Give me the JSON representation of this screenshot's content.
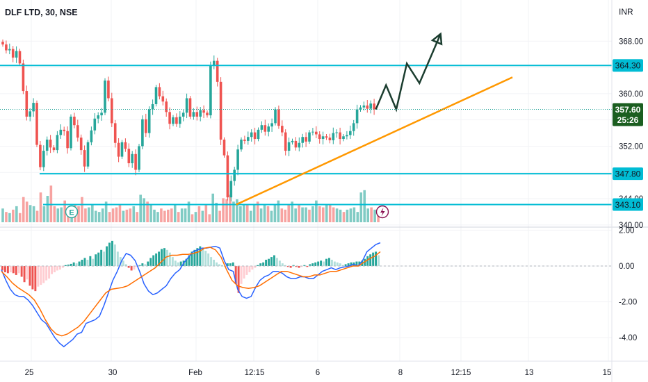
{
  "header": {
    "symbol_title": "DLF LTD, 30, NSE",
    "currency": "INR"
  },
  "colors": {
    "up": "#26a69a",
    "down": "#ef5350",
    "vol_up": "#80cbc4",
    "vol_down": "#f7a3a1",
    "level_line": "#00bcd4",
    "trend_line": "#ff9800",
    "projection": "#1b3d2f",
    "macd": "#2962ff",
    "signal": "#ff6d00",
    "price_tag": "#1b5e20"
  },
  "chart_data": [
    {
      "type": "candlestick",
      "title": "DLF LTD, 30, NSE",
      "ylabel": "INR",
      "ylim": [
        338.5,
        373
      ],
      "yticks": [
        340.0,
        344.0,
        348.0,
        352.0,
        356.0,
        360.0,
        364.0,
        368.0
      ],
      "ytick_labels": [
        "340.00",
        "344.00",
        "348.00",
        "352.00",
        "356.00",
        "360.00",
        "364.00",
        "368.00"
      ],
      "xlabels": [
        "25",
        "30",
        "Feb",
        "12:15",
        "6",
        "8",
        "12:15",
        "13",
        "15"
      ],
      "close_path": [
        367.5,
        366.6,
        366.8,
        365.5,
        366.5,
        364.6,
        360.4,
        356.5,
        357.3,
        358.6,
        352.2,
        348.8,
        351.3,
        353.0,
        351.8,
        351.4,
        353.7,
        354.5,
        354.3,
        351.7,
        356.5,
        355.2,
        353.3,
        351.4,
        348.9,
        352.6,
        354.4,
        356.2,
        356.7,
        357.1,
        362.0,
        359.3,
        355.5,
        352.5,
        350.4,
        352.6,
        351.6,
        349.4,
        350.8,
        348.4,
        352.0,
        356.1,
        354.0,
        357.6,
        358.4,
        361.0,
        359.6,
        358.8,
        357.2,
        355.4,
        356.4,
        355.4,
        356.5,
        357.1,
        359.3,
        356.5,
        357.2,
        356.5,
        357.5,
        357.1,
        356.7,
        364.3,
        365.0,
        361.8,
        353.0,
        350.6,
        344.2,
        346.7,
        348.4,
        351.5,
        353.0,
        352.8,
        353.4,
        354.1,
        353.1,
        354.5,
        355.2,
        354.2,
        355.0,
        355.5,
        357.6,
        355.1,
        354.1,
        351.3,
        352.6,
        352.8,
        351.8,
        352.5,
        353.4,
        352.7,
        354.1,
        354.2,
        353.8,
        353.1,
        353.5,
        353.3,
        352.9,
        354.0,
        354.1,
        353.1,
        353.5,
        353.7,
        354.3,
        355.5,
        357.6,
        357.9,
        358.2,
        357.7,
        358.5,
        357.6
      ],
      "levels": [
        {
          "label": "364.30",
          "value": 364.3
        },
        {
          "label": "347.80",
          "value": 347.8
        },
        {
          "label": "343.10",
          "value": 343.1
        }
      ],
      "last_price": {
        "label": "357.60",
        "value": 357.6,
        "countdown": "25:26"
      },
      "trendline": {
        "from": {
          "bar": 68.5,
          "price": 343.1
        },
        "to": {
          "bar": 149.6,
          "price": 362.5
        }
      },
      "projection_path": [
        {
          "bar": 109.5,
          "price": 357.6
        },
        {
          "bar": 112.5,
          "price": 361.3
        },
        {
          "bar": 115.5,
          "price": 357.6
        },
        {
          "bar": 118.6,
          "price": 364.6
        },
        {
          "bar": 122.3,
          "price": 361.6
        },
        {
          "bar": 128.5,
          "price": 369.1
        }
      ],
      "volume": [
        12,
        9,
        8,
        11,
        14,
        8,
        22,
        18,
        15,
        14,
        10,
        26,
        14,
        23,
        32,
        14,
        12,
        13,
        19,
        10,
        11,
        15,
        14,
        22,
        12,
        13,
        15,
        10,
        9,
        12,
        18,
        9,
        12,
        13,
        16,
        10,
        11,
        12,
        14,
        9,
        24,
        21,
        18,
        16,
        11,
        9,
        12,
        10,
        11,
        12,
        16,
        9,
        12,
        12,
        18,
        7,
        9,
        14,
        10,
        16,
        7,
        25,
        17,
        10,
        21,
        20,
        24,
        18,
        20,
        14,
        15,
        16,
        10,
        15,
        18,
        12,
        15,
        14,
        10,
        16,
        19,
        12,
        11,
        15,
        18,
        12,
        16,
        13,
        13,
        11,
        14,
        19,
        14,
        13,
        15,
        15,
        13,
        12,
        11,
        9,
        11,
        12,
        13,
        9,
        26,
        28,
        12,
        13,
        11,
        10
      ]
    },
    {
      "type": "histogram+line",
      "title": "",
      "ylim": [
        -4.9,
        2.3
      ],
      "yticks": [
        2.0,
        0.0,
        -2.0,
        -4.0
      ],
      "ytick_labels": [
        "2.00",
        "0.00",
        "-2.00",
        "-4.00"
      ],
      "macd": [
        -0.2,
        -0.8,
        -1.3,
        -1.6,
        -1.7,
        -1.7,
        -1.9,
        -2.2,
        -2.6,
        -3.0,
        -3.2,
        -3.6,
        -4.0,
        -4.3,
        -4.5,
        -4.3,
        -4.1,
        -3.8,
        -3.7,
        -3.2,
        -3.1,
        -3.0,
        -2.8,
        -2.2,
        -1.5,
        -0.8,
        -0.3,
        0.3,
        0.7,
        0.6,
        0.3,
        -0.3,
        -1.0,
        -1.4,
        -1.6,
        -1.5,
        -1.3,
        -1.1,
        -0.7,
        -0.4,
        -0.2,
        0.2,
        0.5,
        0.8,
        0.9,
        1.0,
        1.0,
        1.05,
        1.1,
        1.0,
        0.3,
        -0.2,
        -0.3,
        -1.3,
        -1.7,
        -1.8,
        -1.7,
        -1.2,
        -0.8,
        -0.6,
        -0.5,
        -0.3,
        -0.3,
        -0.4,
        -0.6,
        -0.7,
        -0.7,
        -0.6,
        -0.6,
        -0.7,
        -0.7,
        -0.5,
        -0.3,
        -0.2,
        -0.1,
        -0.2,
        -0.1,
        -0.05,
        0.0,
        0.1,
        0.0,
        0.3,
        0.8,
        1.0,
        1.2,
        1.3
      ],
      "signal": [
        -0.3,
        -0.6,
        -0.95,
        -1.2,
        -1.4,
        -1.6,
        -1.9,
        -2.4,
        -3.0,
        -3.5,
        -3.8,
        -3.9,
        -3.8,
        -3.6,
        -3.4,
        -3.1,
        -2.7,
        -2.3,
        -1.9,
        -1.5,
        -1.3,
        -1.25,
        -1.2,
        -1.1,
        -0.9,
        -0.7,
        -0.5,
        -0.3,
        -0.1,
        0.2,
        0.5,
        0.6,
        0.6,
        0.65,
        0.65,
        0.7,
        0.8,
        1.0,
        1.05,
        0.9,
        0.5,
        -0.2,
        -0.8,
        -1.1,
        -1.2,
        -1.25,
        -1.2,
        -1.1,
        -0.9,
        -0.7,
        -0.5,
        -0.3,
        -0.3,
        -0.4,
        -0.5,
        -0.6,
        -0.6,
        -0.5,
        -0.5,
        -0.4,
        -0.3,
        -0.3,
        -0.2,
        -0.1,
        0.0,
        0.0,
        0.2,
        0.4,
        0.55,
        0.8
      ],
      "hist": [
        -0.25,
        -0.35,
        -0.4,
        -0.35,
        -0.4,
        -0.5,
        -0.4,
        -0.6,
        -0.9,
        -0.75,
        -1.1,
        -1.3,
        -1.4,
        -1.15,
        -1.05,
        -0.95,
        -0.8,
        -0.7,
        -0.45,
        -0.35,
        -0.25,
        -0.2,
        -0.1,
        0.05,
        0.08,
        0.12,
        0.2,
        0.15,
        0.25,
        0.35,
        0.45,
        0.35,
        0.55,
        0.4,
        0.65,
        0.75,
        0.9,
        0.8,
        1.1,
        1.3,
        1.4,
        1.2,
        0.8,
        0.5,
        0.3,
        0.1,
        -0.1,
        -0.25,
        -0.2,
        -0.05,
        0.05,
        0.15,
        0.1,
        0.25,
        0.45,
        0.6,
        0.7,
        0.8,
        0.95,
        1.0,
        0.9,
        0.75,
        0.5,
        0.3,
        0.2,
        0.25,
        0.3,
        0.4,
        0.6,
        0.8,
        0.9,
        1.0,
        1.1,
        1.0,
        0.85,
        0.7,
        0.5,
        0.35,
        0.2,
        0.1,
        0.05,
        0.0,
        0.15,
        0.15,
        0.2,
        -1.0,
        -1.5,
        -1.0,
        -0.7,
        -0.5,
        -0.35,
        -0.2,
        -0.1,
        0.05,
        0.15,
        0.2,
        0.35,
        0.4,
        0.5,
        0.6,
        0.45,
        0.3,
        0.15,
        0.05,
        -0.05,
        -0.1,
        0.05,
        -0.05,
        -0.1,
        -0.05,
        0.05,
        -0.05,
        0.1,
        0.15,
        0.2,
        0.25,
        0.3,
        0.25,
        0.4,
        0.45,
        0.35,
        0.25,
        0.2,
        0.15,
        0.05,
        0.1,
        0.15,
        0.2,
        0.2,
        0.25,
        0.25,
        0.3,
        0.4,
        0.55,
        0.65,
        0.75,
        0.8,
        0.6
      ]
    }
  ]
}
